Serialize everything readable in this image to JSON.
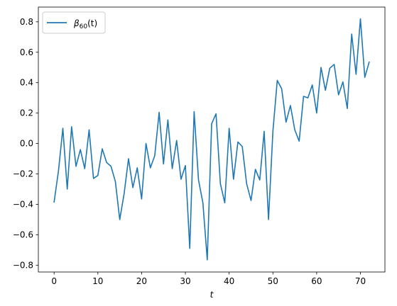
{
  "chart_data": {
    "type": "line",
    "title": "",
    "xlabel": "t",
    "ylabel": "",
    "xlim": [
      -3.6,
      75.6
    ],
    "ylim": [
      -0.845,
      0.897
    ],
    "xticks": [
      0,
      10,
      20,
      30,
      40,
      50,
      60,
      70
    ],
    "yticks": [
      -0.8,
      -0.6,
      -0.4,
      -0.2,
      0.0,
      0.2,
      0.4,
      0.6,
      0.8
    ],
    "xtick_labels": [
      "0",
      "10",
      "20",
      "30",
      "40",
      "50",
      "60",
      "70"
    ],
    "ytick_labels": [
      "−0.8",
      "−0.6",
      "−0.4",
      "−0.2",
      "0.0",
      "0.2",
      "0.4",
      "0.6",
      "0.8"
    ],
    "grid": false,
    "legend_position": "top-left",
    "series": [
      {
        "name": "β60(t)",
        "color": "#1f77b4",
        "x": [
          0,
          1,
          2,
          3,
          4,
          5,
          6,
          7,
          8,
          9,
          10,
          11,
          12,
          13,
          14,
          15,
          16,
          17,
          18,
          19,
          20,
          21,
          22,
          23,
          24,
          25,
          26,
          27,
          28,
          29,
          30,
          31,
          32,
          33,
          34,
          35,
          36,
          37,
          38,
          39,
          40,
          41,
          42,
          43,
          44,
          45,
          46,
          47,
          48,
          49,
          50,
          51,
          52,
          53,
          54,
          55,
          56,
          57,
          58,
          59,
          60,
          61,
          62,
          63,
          64,
          65,
          66,
          67,
          68,
          69,
          70,
          71,
          72
        ],
        "y": [
          -0.385,
          -0.18,
          0.1,
          -0.3,
          0.11,
          -0.15,
          -0.04,
          -0.165,
          0.09,
          -0.23,
          -0.21,
          -0.035,
          -0.125,
          -0.15,
          -0.25,
          -0.5,
          -0.33,
          -0.1,
          -0.29,
          -0.16,
          -0.365,
          0.0,
          -0.16,
          -0.08,
          0.205,
          -0.135,
          0.155,
          -0.165,
          0.02,
          -0.235,
          -0.145,
          -0.69,
          0.21,
          -0.24,
          -0.39,
          -0.765,
          0.13,
          0.195,
          -0.265,
          -0.39,
          0.1,
          -0.235,
          0.01,
          -0.02,
          -0.265,
          -0.375,
          -0.17,
          -0.24,
          0.08,
          -0.5,
          0.08,
          0.415,
          0.36,
          0.14,
          0.25,
          0.09,
          0.015,
          0.31,
          0.3,
          0.385,
          0.2,
          0.5,
          0.35,
          0.495,
          0.52,
          0.32,
          0.405,
          0.23,
          0.72,
          0.455,
          0.82,
          0.435,
          0.535
        ]
      }
    ]
  },
  "legend": {
    "label_main": "β",
    "label_sub": "60",
    "label_tail": "(t)"
  }
}
